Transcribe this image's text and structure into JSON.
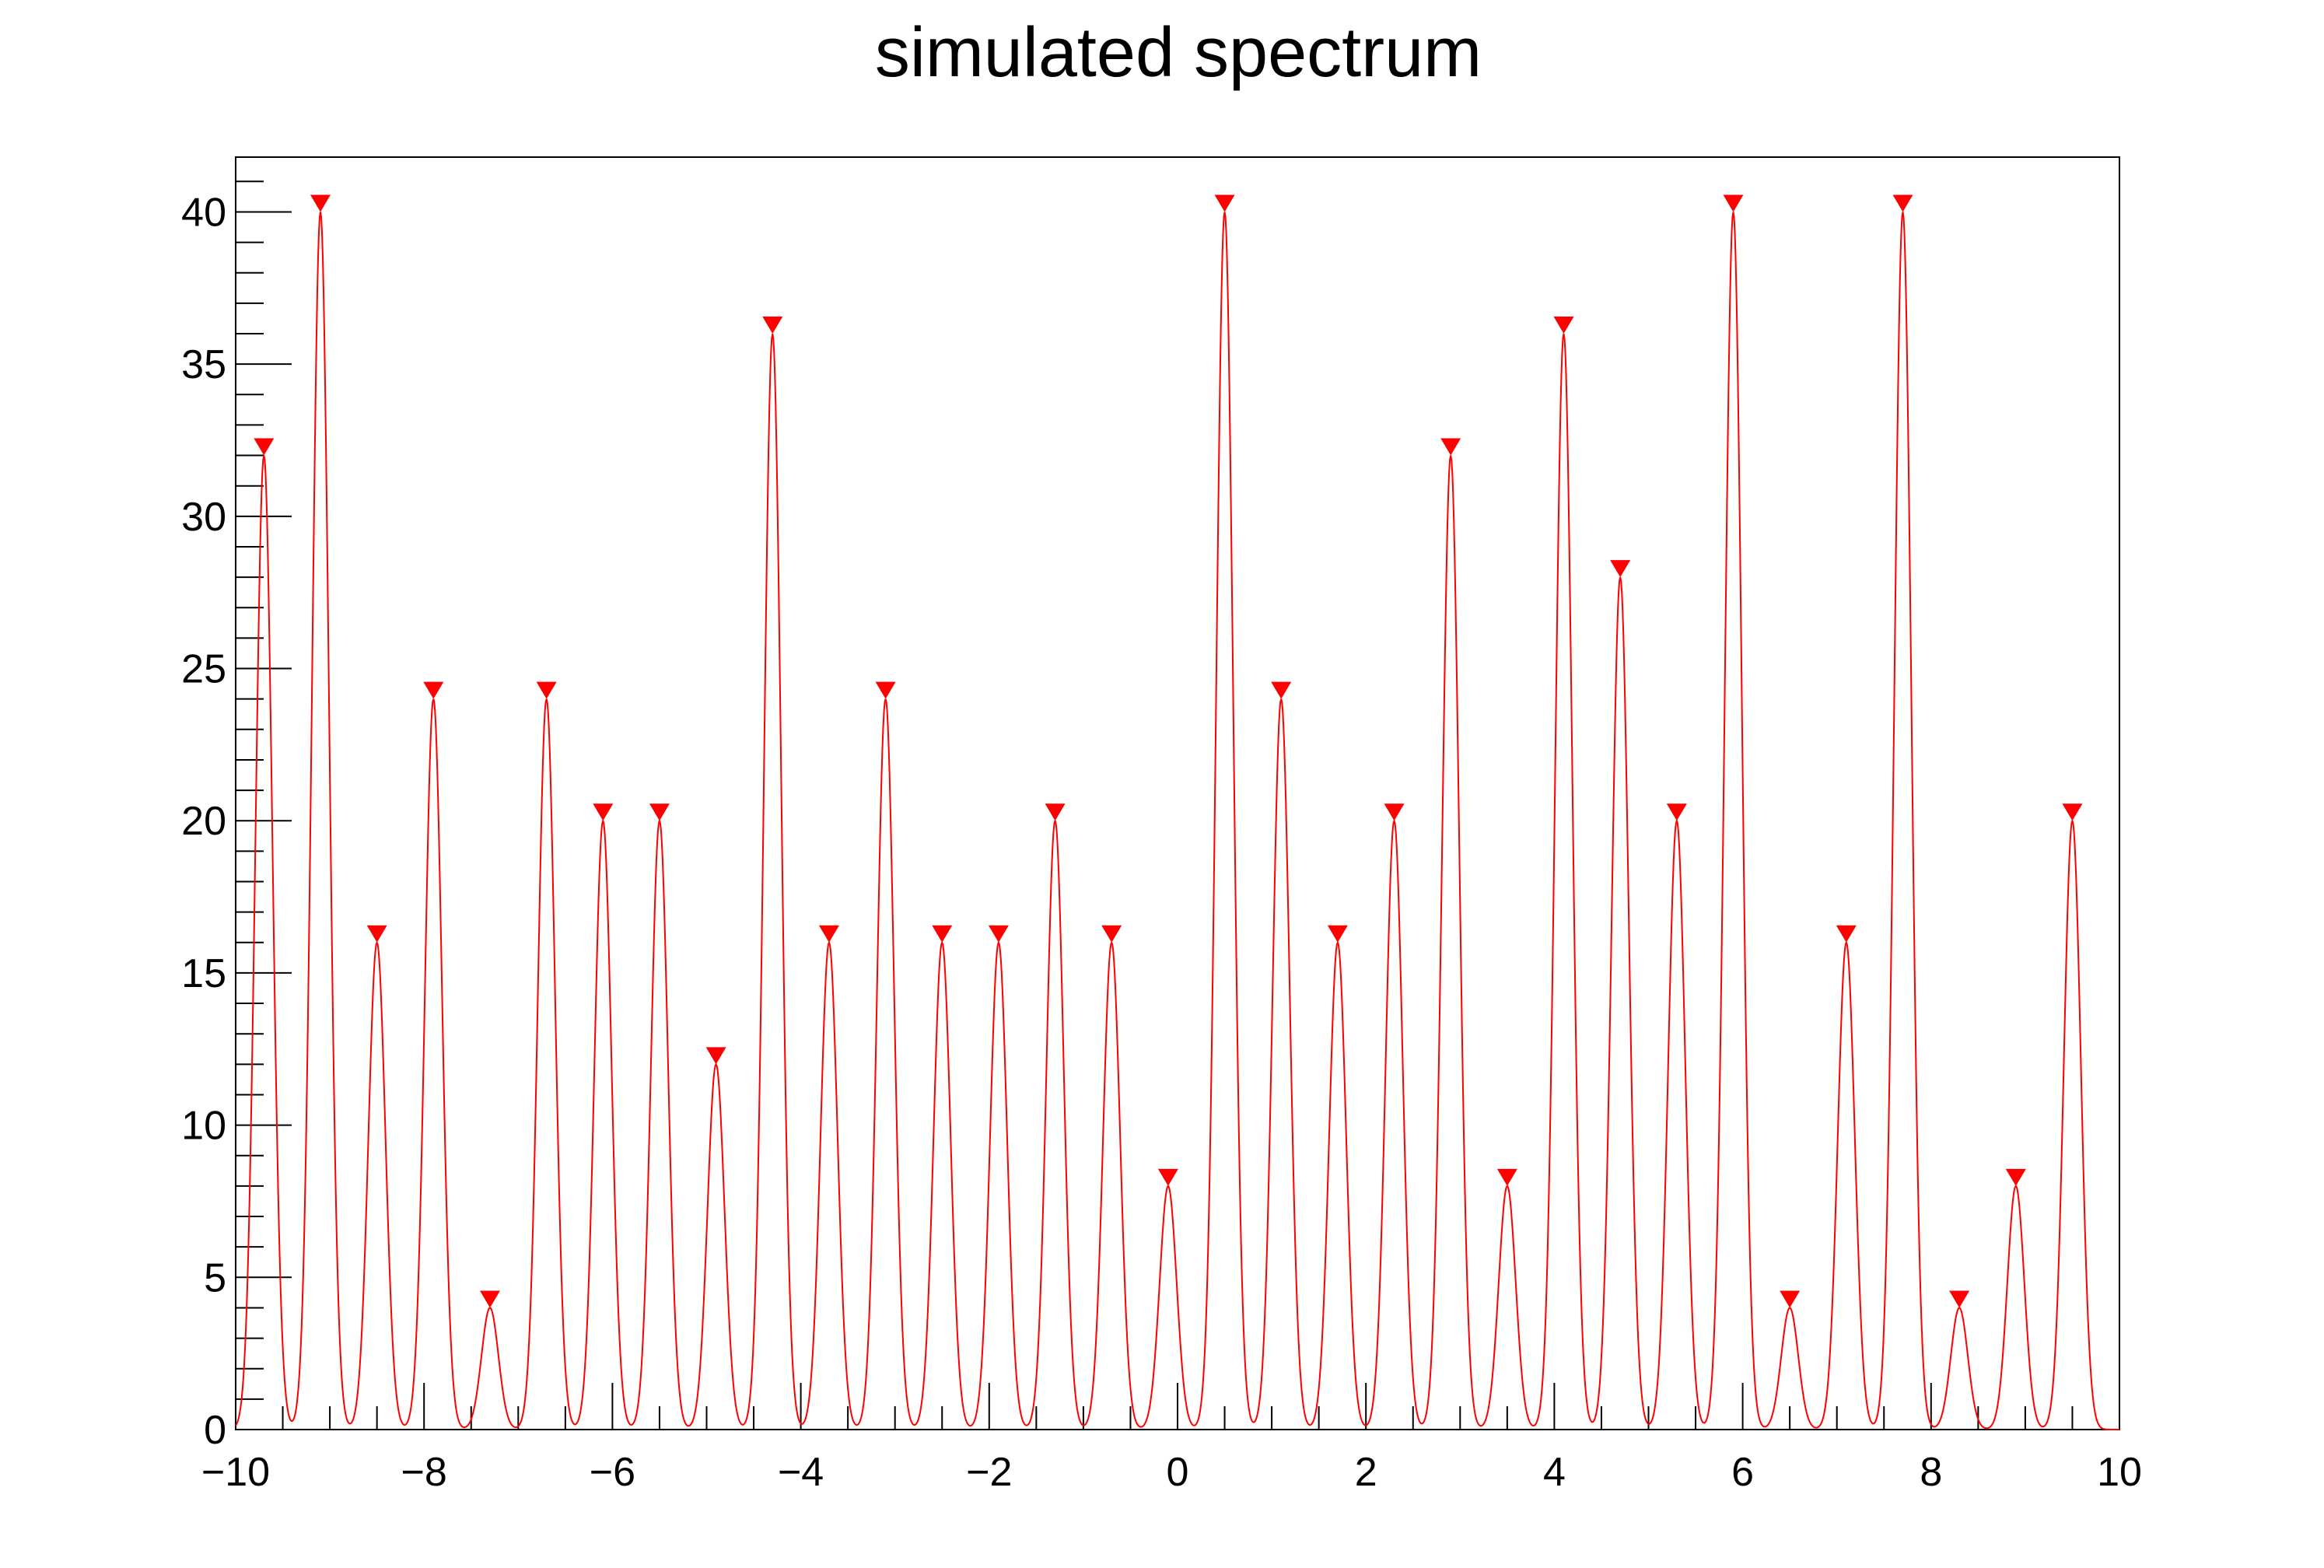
{
  "chart_data": {
    "type": "line",
    "title": "simulated spectrum",
    "xlabel": "",
    "ylabel": "",
    "xlim": [
      -10,
      10
    ],
    "ylim": [
      0,
      41.8
    ],
    "x_ticks": [
      -10,
      -8,
      -6,
      -4,
      -2,
      0,
      2,
      4,
      6,
      8,
      10
    ],
    "x_tick_labels": [
      "−10",
      "−8",
      "−6",
      "−4",
      "−2",
      "0",
      "2",
      "4",
      "6",
      "8",
      "10"
    ],
    "y_ticks": [
      0,
      5,
      10,
      15,
      20,
      25,
      30,
      35,
      40
    ],
    "y_tick_labels": [
      "0",
      "5",
      "10",
      "15",
      "20",
      "25",
      "30",
      "35",
      "40"
    ],
    "grid": false,
    "legend": "none",
    "peak_width_sigma": 0.09,
    "series": [
      {
        "color": "#ff0000",
        "x": [
          -9.7,
          -9.1,
          -8.5,
          -7.9,
          -7.3,
          -6.7,
          -6.1,
          -5.5,
          -4.9,
          -4.3,
          -3.7,
          -3.1,
          -2.5,
          -1.9,
          -1.3,
          -0.7,
          -0.1,
          0.5,
          1.1,
          1.7,
          2.3,
          2.9,
          3.5,
          4.1,
          4.7,
          5.3,
          5.9,
          6.5,
          7.1,
          7.7,
          8.3,
          8.9,
          9.5
        ],
        "y": [
          32,
          40,
          16,
          24,
          4,
          24,
          20,
          20,
          12,
          36,
          16,
          24,
          16,
          16,
          20,
          16,
          8,
          40,
          24,
          16,
          20,
          32,
          8,
          36,
          28,
          20,
          40,
          4,
          16,
          40,
          4,
          8,
          20
        ]
      }
    ],
    "markers": {
      "shape": "triangle-down",
      "color": "#ff0000",
      "x": [
        -9.7,
        -9.1,
        -8.5,
        -7.9,
        -7.3,
        -6.7,
        -6.1,
        -5.5,
        -4.9,
        -4.3,
        -3.7,
        -3.1,
        -2.5,
        -1.9,
        -1.3,
        -0.7,
        -0.1,
        0.5,
        1.1,
        1.7,
        2.3,
        2.9,
        3.5,
        4.1,
        4.7,
        5.3,
        5.9,
        6.5,
        7.1,
        7.7,
        8.3,
        8.9,
        9.5
      ],
      "y": [
        32,
        40,
        16,
        24,
        4,
        24,
        20,
        20,
        12,
        36,
        16,
        24,
        16,
        16,
        20,
        16,
        8,
        40,
        24,
        16,
        20,
        32,
        8,
        36,
        28,
        20,
        40,
        4,
        16,
        40,
        4,
        8,
        20
      ]
    }
  }
}
